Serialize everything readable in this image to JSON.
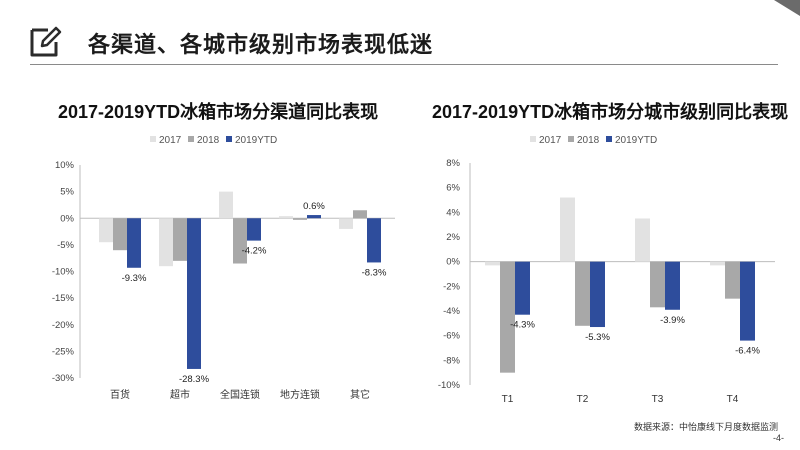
{
  "header": {
    "title": "各渠道、各城市级别市场表现低迷"
  },
  "footer": {
    "source": "数据来源：中怡康线下月度数据监测",
    "page": "-4-"
  },
  "colors": {
    "s2017": "#e2e2e2",
    "s2018": "#a8a8a8",
    "s2019": "#2e4d9c",
    "axis": "#bdbdbd",
    "rule": "#8a8a8a"
  },
  "chart_data": [
    {
      "type": "bar",
      "title": "2017-2019YTD冰箱市场分渠道同比表现",
      "categories": [
        "百货",
        "超市",
        "全国连锁",
        "地方连锁",
        "其它"
      ],
      "series": [
        {
          "name": "2017",
          "values": [
            -4.5,
            -9.0,
            5.0,
            0.4,
            -2.0
          ]
        },
        {
          "name": "2018",
          "values": [
            -6.0,
            -8.0,
            -8.5,
            -0.3,
            1.5
          ]
        },
        {
          "name": "2019YTD",
          "values": [
            -9.3,
            -28.3,
            -4.2,
            0.6,
            -8.3
          ]
        }
      ],
      "data_labels": [
        "-9.3%",
        "-28.3%",
        "-4.2%",
        "0.6%",
        "-8.3%"
      ],
      "ylim": [
        -30,
        10
      ],
      "yticks": [
        "10%",
        "5%",
        "0%",
        "-5%",
        "-10%",
        "-15%",
        "-20%",
        "-25%",
        "-30%"
      ],
      "ytick_values": [
        10,
        5,
        0,
        -5,
        -10,
        -15,
        -20,
        -25,
        -30
      ],
      "legend": "top-left"
    },
    {
      "type": "bar",
      "title": "2017-2019YTD冰箱市场分城市级别同比表现",
      "categories": [
        "T1",
        "T2",
        "T3",
        "T4"
      ],
      "series": [
        {
          "name": "2017",
          "values": [
            -0.3,
            5.2,
            3.5,
            -0.3
          ]
        },
        {
          "name": "2018",
          "values": [
            -9.0,
            -5.2,
            -3.7,
            -3.0
          ]
        },
        {
          "name": "2019YTD",
          "values": [
            -4.3,
            -5.3,
            -3.9,
            -6.4
          ]
        }
      ],
      "data_labels": [
        "-4.3%",
        "-5.3%",
        "-3.9%",
        "-6.4%"
      ],
      "ylim": [
        -10,
        8
      ],
      "yticks": [
        "8%",
        "6%",
        "4%",
        "2%",
        "0%",
        "-2%",
        "-4%",
        "-6%",
        "-8%",
        "-10%"
      ],
      "ytick_values": [
        8,
        6,
        4,
        2,
        0,
        -2,
        -4,
        -6,
        -8,
        -10
      ],
      "legend": "top-center"
    }
  ]
}
